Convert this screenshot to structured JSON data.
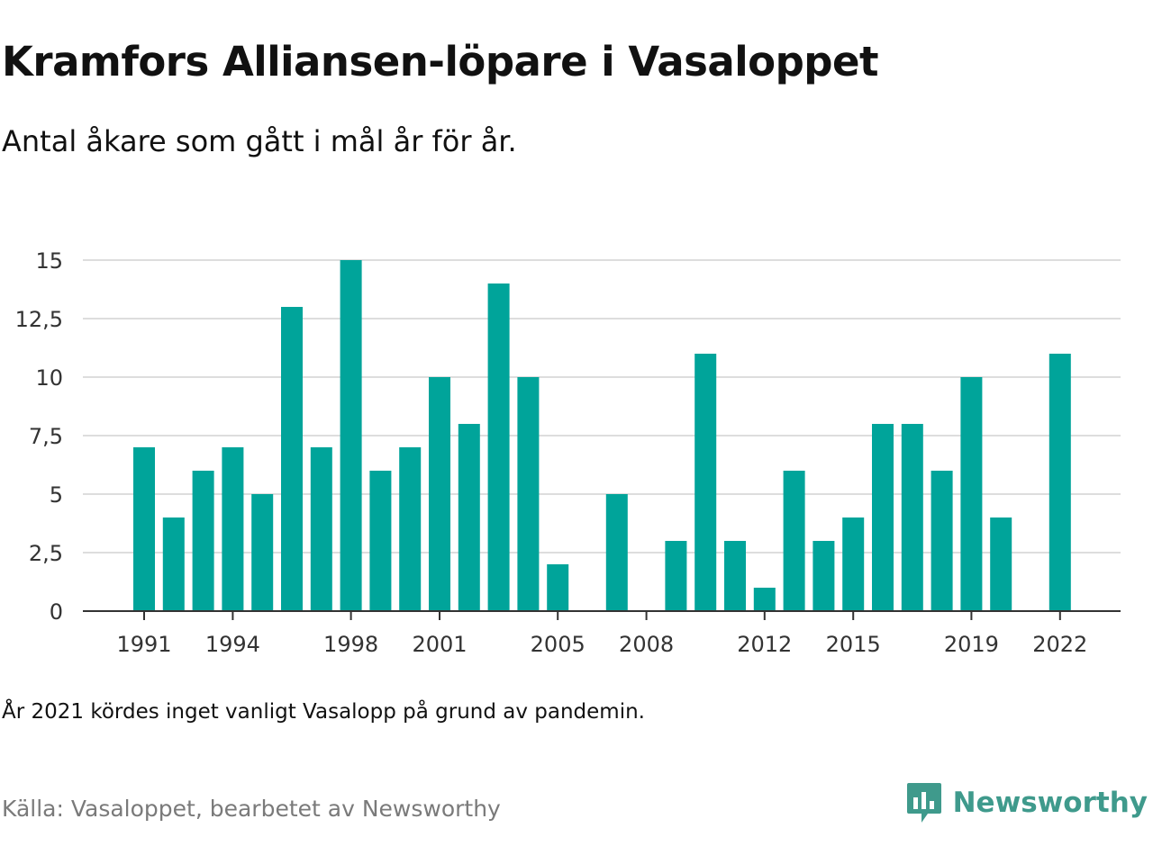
{
  "title": "Kramfors Alliansen-löpare i Vasaloppet",
  "subtitle": "Antal åkare som gått i mål år för år.",
  "note": "År 2021 kördes inget vanligt Vasalopp på grund av pandemin.",
  "source": "Källa: Vasaloppet, bearbetet av Newsworthy",
  "brand": {
    "name": "Newsworthy",
    "icon": "newsworthy-logo-icon"
  },
  "colors": {
    "bar": "#00a49a",
    "grid": "#dddddd",
    "axis": "#333333",
    "brand": "#3f9a8c"
  },
  "chart_data": {
    "type": "bar",
    "categories": [
      "1991",
      "1992",
      "1993",
      "1994",
      "1995",
      "1996",
      "1997",
      "1998",
      "1999",
      "2000",
      "2001",
      "2002",
      "2003",
      "2004",
      "2005",
      "2006",
      "2007",
      "2008",
      "2009",
      "2010",
      "2011",
      "2012",
      "2013",
      "2014",
      "2015",
      "2016",
      "2017",
      "2018",
      "2019",
      "2020",
      "2021",
      "2022"
    ],
    "values": [
      7,
      4,
      6,
      7,
      5,
      13,
      7,
      15,
      6,
      7,
      10,
      8,
      14,
      10,
      2,
      0,
      5,
      0,
      3,
      11,
      3,
      1,
      6,
      3,
      4,
      8,
      8,
      6,
      10,
      4,
      0,
      11
    ],
    "x_tick_labels": [
      "1991",
      "1994",
      "1998",
      "2001",
      "2005",
      "2008",
      "2012",
      "2015",
      "2019",
      "2022"
    ],
    "y_tick_labels": [
      "0",
      "2,5",
      "5",
      "7,5",
      "10",
      "12,5",
      "15"
    ],
    "y_ticks": [
      0,
      2.5,
      5,
      7.5,
      10,
      12.5,
      15
    ],
    "ylim": [
      0,
      15
    ],
    "grid": true,
    "xlabel": "",
    "ylabel": ""
  }
}
